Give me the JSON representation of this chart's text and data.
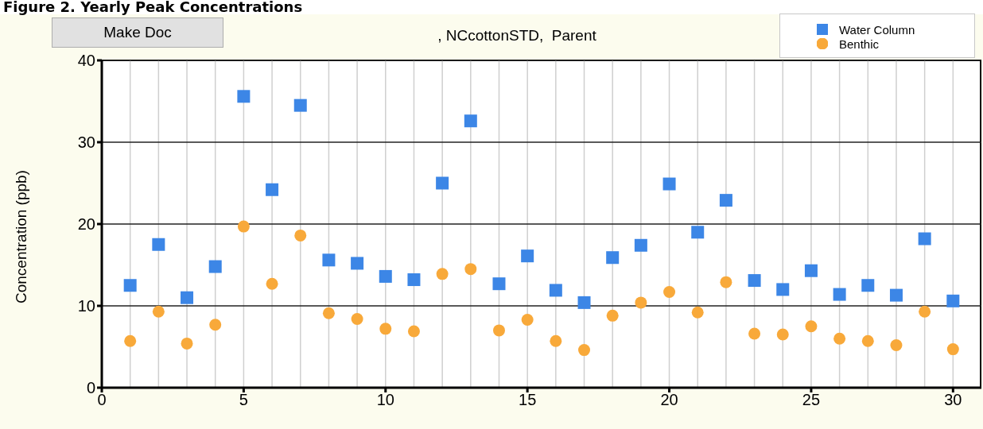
{
  "chart_data": {
    "type": "scatter",
    "title": "Figure 2. Yearly Peak Concentrations",
    "subtitle": ", NCcottonSTD,  Parent",
    "ylabel": "Concentration (ppb)",
    "annotations": [
      "Make Doc"
    ],
    "x": [
      1,
      2,
      3,
      4,
      5,
      6,
      7,
      8,
      9,
      10,
      11,
      12,
      13,
      14,
      15,
      16,
      17,
      18,
      19,
      20,
      21,
      22,
      23,
      24,
      25,
      26,
      27,
      28,
      29,
      30
    ],
    "series": [
      {
        "name": "Water Column",
        "color": "#3c86e6",
        "marker": "square",
        "values": [
          12.5,
          17.5,
          11.0,
          14.8,
          35.6,
          24.2,
          34.5,
          15.6,
          15.2,
          13.6,
          13.2,
          25.0,
          32.6,
          12.7,
          16.1,
          11.9,
          10.4,
          15.9,
          17.4,
          24.9,
          19.0,
          22.9,
          13.1,
          12.0,
          14.3,
          11.4,
          12.5,
          11.3,
          18.2,
          10.6
        ]
      },
      {
        "name": "Benthic",
        "color": "#f8a93a",
        "marker": "circle",
        "values": [
          5.7,
          9.3,
          5.4,
          7.7,
          19.7,
          12.7,
          18.6,
          9.1,
          8.4,
          7.2,
          6.9,
          13.9,
          14.5,
          7.0,
          8.3,
          5.7,
          4.6,
          8.8,
          10.4,
          11.7,
          9.2,
          12.9,
          6.6,
          6.5,
          7.5,
          6.0,
          5.7,
          5.2,
          9.3,
          4.7
        ]
      }
    ],
    "xlim": [
      0,
      31
    ],
    "xticks": [
      0,
      5,
      10,
      15,
      20,
      25,
      30
    ],
    "ylim": [
      0,
      40
    ],
    "yticks": [
      0,
      10,
      20,
      30,
      40
    ],
    "grid": true,
    "legend": "top right"
  }
}
